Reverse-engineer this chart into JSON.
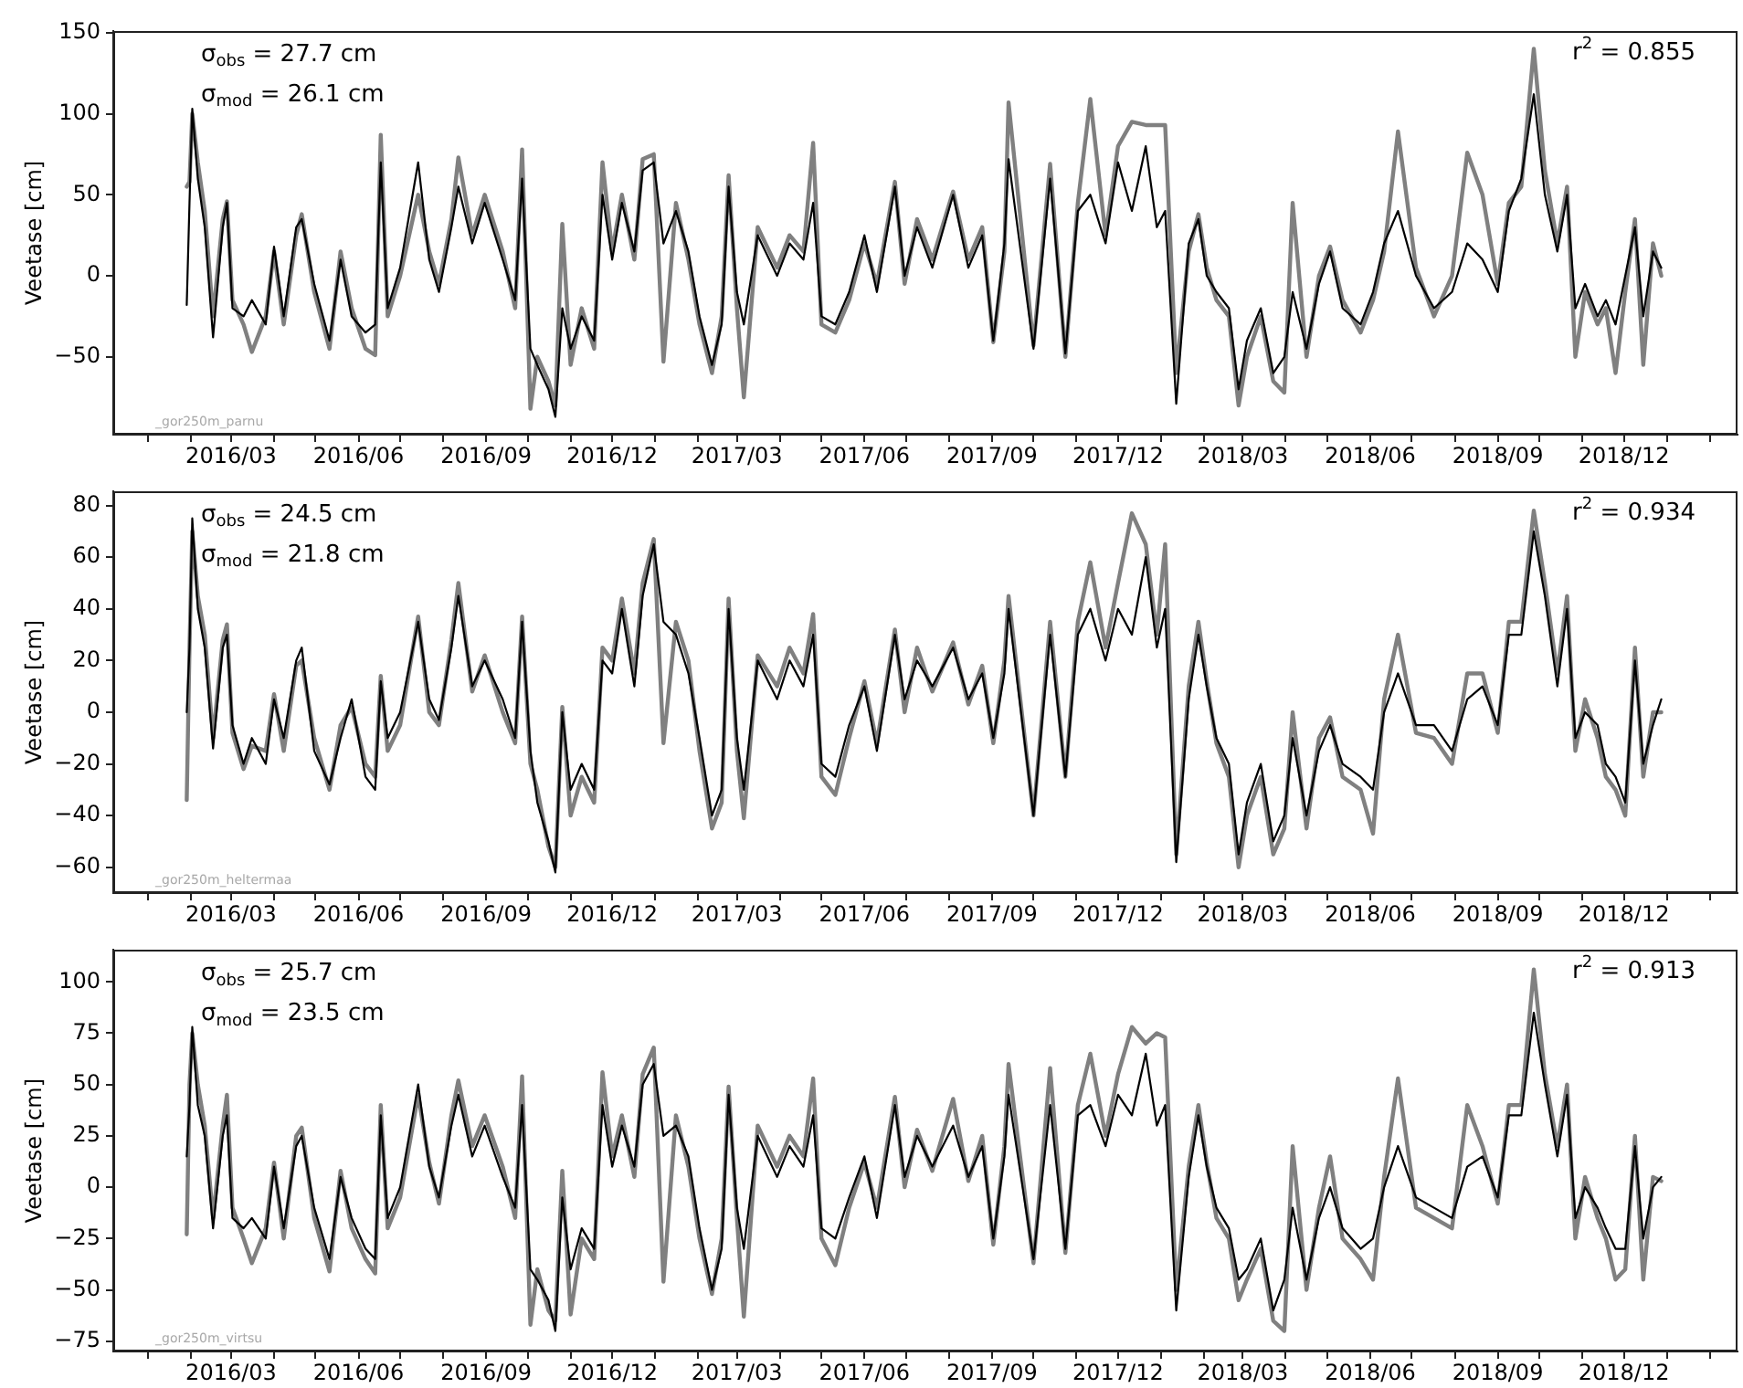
{
  "chart_data": [
    {
      "type": "line",
      "ylabel": "Veetase [cm]",
      "xlim": [
        "2015-12-07",
        "2019-02-21"
      ],
      "ylim": [
        -98,
        151
      ],
      "xticks": [
        {
          "value": "2016-01",
          "label": null
        },
        {
          "value": "2016-02",
          "label": null
        },
        {
          "value": "2016-03",
          "label": "2016/03"
        },
        {
          "value": "2016-04",
          "label": null
        },
        {
          "value": "2016-05",
          "label": null
        },
        {
          "value": "2016-06",
          "label": "2016/06"
        },
        {
          "value": "2016-07",
          "label": null
        },
        {
          "value": "2016-08",
          "label": null
        },
        {
          "value": "2016-09",
          "label": "2016/09"
        },
        {
          "value": "2016-10",
          "label": null
        },
        {
          "value": "2016-11",
          "label": null
        },
        {
          "value": "2016-12",
          "label": "2016/12"
        },
        {
          "value": "2017-01",
          "label": null
        },
        {
          "value": "2017-02",
          "label": null
        },
        {
          "value": "2017-03",
          "label": "2017/03"
        },
        {
          "value": "2017-04",
          "label": null
        },
        {
          "value": "2017-05",
          "label": null
        },
        {
          "value": "2017-06",
          "label": "2017/06"
        },
        {
          "value": "2017-07",
          "label": null
        },
        {
          "value": "2017-08",
          "label": null
        },
        {
          "value": "2017-09",
          "label": "2017/09"
        },
        {
          "value": "2017-10",
          "label": null
        },
        {
          "value": "2017-11",
          "label": null
        },
        {
          "value": "2017-12",
          "label": "2017/12"
        },
        {
          "value": "2018-01",
          "label": null
        },
        {
          "value": "2018-02",
          "label": null
        },
        {
          "value": "2018-03",
          "label": "2018/03"
        },
        {
          "value": "2018-04",
          "label": null
        },
        {
          "value": "2018-05",
          "label": null
        },
        {
          "value": "2018-06",
          "label": "2018/06"
        },
        {
          "value": "2018-07",
          "label": null
        },
        {
          "value": "2018-08",
          "label": null
        },
        {
          "value": "2018-09",
          "label": "2018/09"
        },
        {
          "value": "2018-10",
          "label": null
        },
        {
          "value": "2018-11",
          "label": null
        },
        {
          "value": "2018-12",
          "label": "2018/12"
        },
        {
          "value": "2019-01",
          "label": null
        },
        {
          "value": "2019-02",
          "label": null
        }
      ],
      "yticks": [
        {
          "value": -50,
          "label": "−50"
        },
        0,
        50,
        100,
        150
      ],
      "annotations": [
        "σ$_{obs}$ = 27.7 cm",
        "σ$_{mod}$ = 26.1 cm",
        "r$^{2}$ = 0.855",
        "_gor250m_parnu"
      ],
      "x": [
        "2016-01-29",
        "2016-01-31",
        "2016-02-02",
        "2016-02-06",
        "2016-02-11",
        "2016-02-17",
        "2016-02-24",
        "2016-02-27",
        "2016-03-02",
        "2016-03-10",
        "2016-03-16",
        "2016-03-26",
        "2016-04-01",
        "2016-04-08",
        "2016-04-17",
        "2016-04-21",
        "2016-04-30",
        "2016-05-11",
        "2016-05-19",
        "2016-05-27",
        "2016-06-06",
        "2016-06-13",
        "2016-06-17",
        "2016-06-22",
        "2016-07-01",
        "2016-07-14",
        "2016-07-22",
        "2016-07-29",
        "2016-08-07",
        "2016-08-12",
        "2016-08-22",
        "2016-08-31",
        "2016-09-13",
        "2016-09-22",
        "2016-09-27",
        "2016-10-03",
        "2016-10-08",
        "2016-10-16",
        "2016-10-21",
        "2016-10-26",
        "2016-11-01",
        "2016-11-09",
        "2016-11-18",
        "2016-11-24",
        "2016-12-01",
        "2016-12-08",
        "2016-12-17",
        "2016-12-23",
        "2016-12-31",
        "2017-01-07",
        "2017-01-16",
        "2017-01-25",
        "2017-02-02",
        "2017-02-11",
        "2017-02-18",
        "2017-02-23",
        "2017-03-01",
        "2017-03-06",
        "2017-03-16",
        "2017-03-30",
        "2017-04-08",
        "2017-04-18",
        "2017-04-25",
        "2017-05-01",
        "2017-05-11",
        "2017-05-21",
        "2017-06-01",
        "2017-06-10",
        "2017-06-23",
        "2017-06-30",
        "2017-07-09",
        "2017-07-20",
        "2017-08-04",
        "2017-08-15",
        "2017-08-25",
        "2017-09-02",
        "2017-09-10",
        "2017-09-13",
        "2017-10-01",
        "2017-10-13",
        "2017-10-24",
        "2017-11-02",
        "2017-11-11",
        "2017-11-22",
        "2017-12-01",
        "2017-12-11",
        "2017-12-21",
        "2017-12-29",
        "2018-01-04",
        "2018-01-12",
        "2018-01-21",
        "2018-01-28",
        "2018-02-03",
        "2018-02-10",
        "2018-02-19",
        "2018-02-26",
        "2018-03-04",
        "2018-03-14",
        "2018-03-23",
        "2018-03-31",
        "2018-04-06",
        "2018-04-16",
        "2018-04-25",
        "2018-05-03",
        "2018-05-12",
        "2018-05-25",
        "2018-06-03",
        "2018-06-11",
        "2018-06-21",
        "2018-07-04",
        "2018-07-17",
        "2018-07-30",
        "2018-08-10",
        "2018-08-21",
        "2018-09-01",
        "2018-09-09",
        "2018-09-18",
        "2018-09-27",
        "2018-10-05",
        "2018-10-14",
        "2018-10-21",
        "2018-10-27",
        "2018-11-03",
        "2018-11-12",
        "2018-11-18",
        "2018-11-25",
        "2018-12-02",
        "2018-12-09",
        "2018-12-15",
        "2018-12-22",
        "2018-12-28"
      ],
      "series": [
        {
          "color": "#808080",
          "values": [
            55,
            58,
            100,
            70,
            40,
            -25,
            35,
            46,
            -15,
            -30,
            -47,
            -25,
            15,
            -30,
            25,
            38,
            -10,
            -45,
            15,
            -20,
            -45,
            -49,
            87,
            -25,
            0,
            50,
            15,
            -5,
            35,
            73,
            25,
            50,
            15,
            -20,
            78,
            -82,
            -50,
            -65,
            -80,
            32,
            -55,
            -20,
            -45,
            70,
            15,
            50,
            10,
            72,
            75,
            -53,
            45,
            10,
            -30,
            -60,
            -25,
            62,
            -20,
            -75,
            30,
            5,
            25,
            15,
            82,
            -30,
            -35,
            -15,
            20,
            -5,
            58,
            -5,
            35,
            10,
            52,
            10,
            30,
            -41,
            15,
            107,
            -43,
            69,
            -50,
            45,
            109,
            25,
            80,
            95,
            93,
            93,
            93,
            -60,
            15,
            38,
            5,
            -15,
            -25,
            -80,
            -50,
            -25,
            -65,
            -72,
            45,
            -50,
            0,
            18,
            -15,
            -35,
            -15,
            15,
            89,
            5,
            -25,
            0,
            76,
            50,
            -5,
            45,
            55,
            140,
            65,
            20,
            55,
            -50,
            -10,
            -30,
            -20,
            -60,
            -10,
            35,
            -55,
            20,
            0
          ]
        },
        {
          "color": "#000000",
          "values": [
            -18,
            45,
            103,
            60,
            30,
            -38,
            30,
            45,
            -20,
            -25,
            -15,
            -30,
            18,
            -25,
            30,
            35,
            -5,
            -40,
            10,
            -25,
            -35,
            -30,
            70,
            -20,
            5,
            70,
            10,
            -10,
            30,
            55,
            20,
            45,
            10,
            -15,
            60,
            -45,
            -55,
            -70,
            -87,
            -20,
            -45,
            -25,
            -40,
            50,
            10,
            45,
            15,
            65,
            70,
            20,
            40,
            15,
            -25,
            -55,
            -30,
            55,
            -10,
            -30,
            25,
            0,
            20,
            10,
            45,
            -25,
            -30,
            -10,
            25,
            -10,
            55,
            0,
            30,
            5,
            50,
            5,
            25,
            -40,
            20,
            72,
            -45,
            60,
            -48,
            40,
            50,
            20,
            70,
            40,
            80,
            30,
            40,
            -79,
            20,
            35,
            0,
            -10,
            -20,
            -70,
            -40,
            -20,
            -60,
            -50,
            -10,
            -45,
            -5,
            15,
            -20,
            -30,
            -10,
            20,
            40,
            0,
            -20,
            -10,
            20,
            10,
            -10,
            40,
            60,
            112,
            50,
            15,
            50,
            -20,
            -5,
            -25,
            -15,
            -30,
            0,
            30,
            -25,
            15,
            5
          ]
        }
      ]
    },
    {
      "type": "line",
      "ylabel": "Veetase [cm]",
      "xlim": [
        "2015-12-07",
        "2019-02-21"
      ],
      "ylim": [
        -70,
        85.5
      ],
      "xticks": [
        {
          "value": "2016-01",
          "label": null
        },
        {
          "value": "2016-02",
          "label": null
        },
        {
          "value": "2016-03",
          "label": "2016/03"
        },
        {
          "value": "2016-04",
          "label": null
        },
        {
          "value": "2016-05",
          "label": null
        },
        {
          "value": "2016-06",
          "label": "2016/06"
        },
        {
          "value": "2016-07",
          "label": null
        },
        {
          "value": "2016-08",
          "label": null
        },
        {
          "value": "2016-09",
          "label": "2016/09"
        },
        {
          "value": "2016-10",
          "label": null
        },
        {
          "value": "2016-11",
          "label": null
        },
        {
          "value": "2016-12",
          "label": "2016/12"
        },
        {
          "value": "2017-01",
          "label": null
        },
        {
          "value": "2017-02",
          "label": null
        },
        {
          "value": "2017-03",
          "label": "2017/03"
        },
        {
          "value": "2017-04",
          "label": null
        },
        {
          "value": "2017-05",
          "label": null
        },
        {
          "value": "2017-06",
          "label": "2017/06"
        },
        {
          "value": "2017-07",
          "label": null
        },
        {
          "value": "2017-08",
          "label": null
        },
        {
          "value": "2017-09",
          "label": "2017/09"
        },
        {
          "value": "2017-10",
          "label": null
        },
        {
          "value": "2017-11",
          "label": null
        },
        {
          "value": "2017-12",
          "label": "2017/12"
        },
        {
          "value": "2018-01",
          "label": null
        },
        {
          "value": "2018-02",
          "label": null
        },
        {
          "value": "2018-03",
          "label": "2018/03"
        },
        {
          "value": "2018-04",
          "label": null
        },
        {
          "value": "2018-05",
          "label": null
        },
        {
          "value": "2018-06",
          "label": "2018/06"
        },
        {
          "value": "2018-07",
          "label": null
        },
        {
          "value": "2018-08",
          "label": null
        },
        {
          "value": "2018-09",
          "label": "2018/09"
        },
        {
          "value": "2018-10",
          "label": null
        },
        {
          "value": "2018-11",
          "label": null
        },
        {
          "value": "2018-12",
          "label": "2018/12"
        },
        {
          "value": "2019-01",
          "label": null
        },
        {
          "value": "2019-02",
          "label": null
        }
      ],
      "yticks": [
        {
          "value": -60,
          "label": "−60"
        },
        {
          "value": -40,
          "label": "−40"
        },
        {
          "value": -20,
          "label": "−20"
        },
        0,
        20,
        40,
        60,
        80
      ],
      "annotations": [
        "σ$_{obs}$ = 24.5 cm",
        "σ$_{mod}$ = 21.8 cm",
        "r$^{2}$ = 0.934",
        "_gor250m_heltermaa"
      ],
      "x": [
        "2016-01-29",
        "2016-01-31",
        "2016-02-02",
        "2016-02-06",
        "2016-02-11",
        "2016-02-17",
        "2016-02-24",
        "2016-02-27",
        "2016-03-02",
        "2016-03-10",
        "2016-03-16",
        "2016-03-26",
        "2016-04-01",
        "2016-04-08",
        "2016-04-17",
        "2016-04-21",
        "2016-04-30",
        "2016-05-11",
        "2016-05-19",
        "2016-05-27",
        "2016-06-06",
        "2016-06-13",
        "2016-06-17",
        "2016-06-22",
        "2016-07-01",
        "2016-07-14",
        "2016-07-22",
        "2016-07-29",
        "2016-08-07",
        "2016-08-12",
        "2016-08-22",
        "2016-08-31",
        "2016-09-13",
        "2016-09-22",
        "2016-09-27",
        "2016-10-03",
        "2016-10-08",
        "2016-10-16",
        "2016-10-21",
        "2016-10-26",
        "2016-11-01",
        "2016-11-09",
        "2016-11-18",
        "2016-11-24",
        "2016-12-01",
        "2016-12-08",
        "2016-12-17",
        "2016-12-23",
        "2016-12-31",
        "2017-01-07",
        "2017-01-16",
        "2017-01-25",
        "2017-02-02",
        "2017-02-11",
        "2017-02-18",
        "2017-02-23",
        "2017-03-01",
        "2017-03-06",
        "2017-03-16",
        "2017-03-30",
        "2017-04-08",
        "2017-04-18",
        "2017-04-25",
        "2017-05-01",
        "2017-05-11",
        "2017-05-21",
        "2017-06-01",
        "2017-06-10",
        "2017-06-23",
        "2017-06-30",
        "2017-07-09",
        "2017-07-20",
        "2017-08-04",
        "2017-08-15",
        "2017-08-25",
        "2017-09-02",
        "2017-09-10",
        "2017-09-13",
        "2017-10-01",
        "2017-10-13",
        "2017-10-24",
        "2017-11-02",
        "2017-11-11",
        "2017-11-22",
        "2017-12-01",
        "2017-12-11",
        "2017-12-21",
        "2017-12-29",
        "2018-01-04",
        "2018-01-12",
        "2018-01-21",
        "2018-01-28",
        "2018-02-03",
        "2018-02-10",
        "2018-02-19",
        "2018-02-26",
        "2018-03-04",
        "2018-03-14",
        "2018-03-23",
        "2018-03-31",
        "2018-04-06",
        "2018-04-16",
        "2018-04-25",
        "2018-05-03",
        "2018-05-12",
        "2018-05-25",
        "2018-06-03",
        "2018-06-11",
        "2018-06-21",
        "2018-07-04",
        "2018-07-17",
        "2018-07-30",
        "2018-08-10",
        "2018-08-21",
        "2018-09-01",
        "2018-09-09",
        "2018-09-18",
        "2018-09-27",
        "2018-10-05",
        "2018-10-14",
        "2018-10-21",
        "2018-10-27",
        "2018-11-03",
        "2018-11-12",
        "2018-11-18",
        "2018-11-25",
        "2018-12-02",
        "2018-12-09",
        "2018-12-15",
        "2018-12-22",
        "2018-12-28"
      ],
      "series": [
        {
          "color": "#808080",
          "values": [
            -34,
            25,
            70,
            45,
            30,
            -10,
            28,
            34,
            -8,
            -22,
            -13,
            -15,
            7,
            -15,
            18,
            20,
            -10,
            -30,
            -5,
            2,
            -20,
            -25,
            14,
            -15,
            -5,
            37,
            0,
            -5,
            28,
            50,
            8,
            22,
            0,
            -12,
            37,
            -20,
            -30,
            -52,
            -60,
            2,
            -40,
            -25,
            -35,
            25,
            20,
            44,
            15,
            50,
            67,
            -12,
            35,
            20,
            -15,
            -45,
            -35,
            44,
            -15,
            -41,
            22,
            10,
            25,
            15,
            38,
            -25,
            -32,
            -10,
            12,
            -12,
            32,
            0,
            25,
            8,
            27,
            3,
            18,
            -12,
            20,
            45,
            -40,
            35,
            -25,
            35,
            58,
            25,
            50,
            77,
            65,
            30,
            65,
            -55,
            10,
            35,
            12,
            -12,
            -25,
            -60,
            -40,
            -25,
            -55,
            -45,
            0,
            -45,
            -10,
            -2,
            -25,
            -30,
            -47,
            5,
            30,
            -8,
            -10,
            -20,
            15,
            15,
            -8,
            35,
            35,
            78,
            50,
            15,
            45,
            -15,
            5,
            -10,
            -25,
            -30,
            -40,
            25,
            -25,
            0,
            0
          ]
        },
        {
          "color": "#000000",
          "values": [
            0,
            25,
            75,
            40,
            25,
            -14,
            25,
            30,
            -5,
            -20,
            -10,
            -20,
            5,
            -10,
            20,
            25,
            -15,
            -28,
            -10,
            5,
            -25,
            -30,
            12,
            -10,
            0,
            35,
            5,
            -3,
            25,
            45,
            10,
            20,
            5,
            -10,
            35,
            -15,
            -35,
            -50,
            -62,
            0,
            -30,
            -20,
            -30,
            20,
            15,
            40,
            10,
            45,
            65,
            35,
            30,
            15,
            -10,
            -40,
            -30,
            40,
            -10,
            -30,
            20,
            5,
            20,
            10,
            30,
            -20,
            -25,
            -5,
            10,
            -15,
            30,
            5,
            20,
            10,
            25,
            5,
            15,
            -10,
            15,
            40,
            -40,
            30,
            -25,
            30,
            40,
            20,
            40,
            30,
            60,
            25,
            40,
            -58,
            5,
            30,
            10,
            -10,
            -20,
            -55,
            -35,
            -20,
            -50,
            -40,
            -10,
            -40,
            -15,
            -5,
            -20,
            -25,
            -30,
            0,
            15,
            -5,
            -5,
            -15,
            5,
            10,
            -5,
            30,
            30,
            70,
            45,
            10,
            40,
            -10,
            0,
            -5,
            -20,
            -25,
            -35,
            20,
            -20,
            -5,
            5
          ]
        }
      ]
    },
    {
      "type": "line",
      "ylabel": "Veetase [cm]",
      "xlim": [
        "2015-12-07",
        "2019-02-21"
      ],
      "ylim": [
        -80,
        115.5
      ],
      "xticks": [
        {
          "value": "2016-01",
          "label": null
        },
        {
          "value": "2016-02",
          "label": null
        },
        {
          "value": "2016-03",
          "label": "2016/03"
        },
        {
          "value": "2016-04",
          "label": null
        },
        {
          "value": "2016-05",
          "label": null
        },
        {
          "value": "2016-06",
          "label": "2016/06"
        },
        {
          "value": "2016-07",
          "label": null
        },
        {
          "value": "2016-08",
          "label": null
        },
        {
          "value": "2016-09",
          "label": "2016/09"
        },
        {
          "value": "2016-10",
          "label": null
        },
        {
          "value": "2016-11",
          "label": null
        },
        {
          "value": "2016-12",
          "label": "2016/12"
        },
        {
          "value": "2017-01",
          "label": null
        },
        {
          "value": "2017-02",
          "label": null
        },
        {
          "value": "2017-03",
          "label": "2017/03"
        },
        {
          "value": "2017-04",
          "label": null
        },
        {
          "value": "2017-05",
          "label": null
        },
        {
          "value": "2017-06",
          "label": "2017/06"
        },
        {
          "value": "2017-07",
          "label": null
        },
        {
          "value": "2017-08",
          "label": null
        },
        {
          "value": "2017-09",
          "label": "2017/09"
        },
        {
          "value": "2017-10",
          "label": null
        },
        {
          "value": "2017-11",
          "label": null
        },
        {
          "value": "2017-12",
          "label": "2017/12"
        },
        {
          "value": "2018-01",
          "label": null
        },
        {
          "value": "2018-02",
          "label": null
        },
        {
          "value": "2018-03",
          "label": "2018/03"
        },
        {
          "value": "2018-04",
          "label": null
        },
        {
          "value": "2018-05",
          "label": null
        },
        {
          "value": "2018-06",
          "label": "2018/06"
        },
        {
          "value": "2018-07",
          "label": null
        },
        {
          "value": "2018-08",
          "label": null
        },
        {
          "value": "2018-09",
          "label": "2018/09"
        },
        {
          "value": "2018-10",
          "label": null
        },
        {
          "value": "2018-11",
          "label": null
        },
        {
          "value": "2018-12",
          "label": "2018/12"
        },
        {
          "value": "2019-01",
          "label": null
        },
        {
          "value": "2019-02",
          "label": null
        }
      ],
      "yticks": [
        {
          "value": -75,
          "label": "−75"
        },
        {
          "value": -50,
          "label": "−50"
        },
        {
          "value": -25,
          "label": "−25"
        },
        0,
        25,
        50,
        75,
        100
      ],
      "annotations": [
        "σ$_{obs}$ = 25.7 cm",
        "σ$_{mod}$ = 23.5 cm",
        "r$^{2}$ = 0.913",
        "_gor250m_virtsu"
      ],
      "x": [
        "2016-01-29",
        "2016-01-31",
        "2016-02-02",
        "2016-02-06",
        "2016-02-11",
        "2016-02-17",
        "2016-02-24",
        "2016-02-27",
        "2016-03-02",
        "2016-03-10",
        "2016-03-16",
        "2016-03-26",
        "2016-04-01",
        "2016-04-08",
        "2016-04-17",
        "2016-04-21",
        "2016-04-30",
        "2016-05-11",
        "2016-05-19",
        "2016-05-27",
        "2016-06-06",
        "2016-06-13",
        "2016-06-17",
        "2016-06-22",
        "2016-07-01",
        "2016-07-14",
        "2016-07-22",
        "2016-07-29",
        "2016-08-07",
        "2016-08-12",
        "2016-08-22",
        "2016-08-31",
        "2016-09-13",
        "2016-09-22",
        "2016-09-27",
        "2016-10-03",
        "2016-10-08",
        "2016-10-16",
        "2016-10-21",
        "2016-10-26",
        "2016-11-01",
        "2016-11-09",
        "2016-11-18",
        "2016-11-24",
        "2016-12-01",
        "2016-12-08",
        "2016-12-17",
        "2016-12-23",
        "2016-12-31",
        "2017-01-07",
        "2017-01-16",
        "2017-01-25",
        "2017-02-02",
        "2017-02-11",
        "2017-02-18",
        "2017-02-23",
        "2017-03-01",
        "2017-03-06",
        "2017-03-16",
        "2017-03-30",
        "2017-04-08",
        "2017-04-18",
        "2017-04-25",
        "2017-05-01",
        "2017-05-11",
        "2017-05-21",
        "2017-06-01",
        "2017-06-10",
        "2017-06-23",
        "2017-06-30",
        "2017-07-09",
        "2017-07-20",
        "2017-08-04",
        "2017-08-15",
        "2017-08-25",
        "2017-09-02",
        "2017-09-10",
        "2017-09-13",
        "2017-10-01",
        "2017-10-13",
        "2017-10-24",
        "2017-11-02",
        "2017-11-11",
        "2017-11-22",
        "2017-12-01",
        "2017-12-11",
        "2017-12-21",
        "2017-12-29",
        "2018-01-04",
        "2018-01-12",
        "2018-01-21",
        "2018-01-28",
        "2018-02-03",
        "2018-02-10",
        "2018-02-19",
        "2018-02-26",
        "2018-03-04",
        "2018-03-14",
        "2018-03-23",
        "2018-03-31",
        "2018-04-06",
        "2018-04-16",
        "2018-04-25",
        "2018-05-03",
        "2018-05-12",
        "2018-05-25",
        "2018-06-03",
        "2018-06-11",
        "2018-06-21",
        "2018-07-04",
        "2018-07-17",
        "2018-07-30",
        "2018-08-10",
        "2018-08-21",
        "2018-09-01",
        "2018-09-09",
        "2018-09-18",
        "2018-09-27",
        "2018-10-05",
        "2018-10-14",
        "2018-10-21",
        "2018-10-27",
        "2018-11-03",
        "2018-11-12",
        "2018-11-18",
        "2018-11-25",
        "2018-12-02",
        "2018-12-09",
        "2018-12-15",
        "2018-12-22",
        "2018-12-28"
      ],
      "series": [
        {
          "color": "#808080",
          "values": [
            -23,
            50,
            75,
            50,
            30,
            -15,
            30,
            45,
            -10,
            -25,
            -37,
            -20,
            12,
            -25,
            25,
            29,
            -15,
            -41,
            8,
            -20,
            -35,
            -42,
            40,
            -20,
            -5,
            45,
            12,
            -8,
            35,
            52,
            20,
            35,
            10,
            -15,
            54,
            -67,
            -40,
            -60,
            -65,
            8,
            -62,
            -25,
            -35,
            56,
            15,
            35,
            5,
            55,
            68,
            -46,
            35,
            10,
            -25,
            -52,
            -25,
            49,
            -15,
            -63,
            30,
            10,
            25,
            15,
            53,
            -25,
            -38,
            -10,
            12,
            -10,
            44,
            0,
            28,
            8,
            43,
            3,
            25,
            -28,
            20,
            60,
            -37,
            58,
            -32,
            40,
            65,
            25,
            55,
            78,
            70,
            75,
            73,
            -50,
            10,
            40,
            12,
            -15,
            -25,
            -55,
            -45,
            -30,
            -65,
            -70,
            20,
            -50,
            -10,
            15,
            -25,
            -35,
            -45,
            5,
            53,
            -10,
            -15,
            -20,
            40,
            20,
            -8,
            40,
            40,
            106,
            55,
            20,
            50,
            -25,
            5,
            -15,
            -25,
            -45,
            -40,
            25,
            -45,
            5,
            3
          ]
        },
        {
          "color": "#000000",
          "values": [
            15,
            40,
            78,
            40,
            25,
            -20,
            25,
            35,
            -15,
            -20,
            -15,
            -25,
            10,
            -20,
            20,
            25,
            -10,
            -35,
            5,
            -15,
            -30,
            -35,
            35,
            -15,
            0,
            50,
            10,
            -5,
            30,
            45,
            15,
            30,
            5,
            -10,
            40,
            -40,
            -45,
            -55,
            -70,
            -5,
            -40,
            -20,
            -30,
            40,
            10,
            30,
            10,
            50,
            60,
            25,
            30,
            15,
            -20,
            -50,
            -30,
            45,
            -10,
            -30,
            25,
            5,
            20,
            10,
            35,
            -20,
            -25,
            -5,
            15,
            -15,
            40,
            5,
            25,
            10,
            30,
            5,
            20,
            -25,
            15,
            45,
            -35,
            40,
            -30,
            35,
            40,
            20,
            45,
            35,
            65,
            30,
            40,
            -60,
            5,
            35,
            10,
            -10,
            -20,
            -45,
            -40,
            -25,
            -60,
            -45,
            -10,
            -45,
            -15,
            0,
            -20,
            -30,
            -25,
            0,
            20,
            -5,
            -10,
            -15,
            10,
            15,
            -5,
            35,
            35,
            85,
            50,
            15,
            45,
            -15,
            0,
            -10,
            -20,
            -30,
            -30,
            20,
            -25,
            0,
            5
          ]
        }
      ]
    }
  ]
}
